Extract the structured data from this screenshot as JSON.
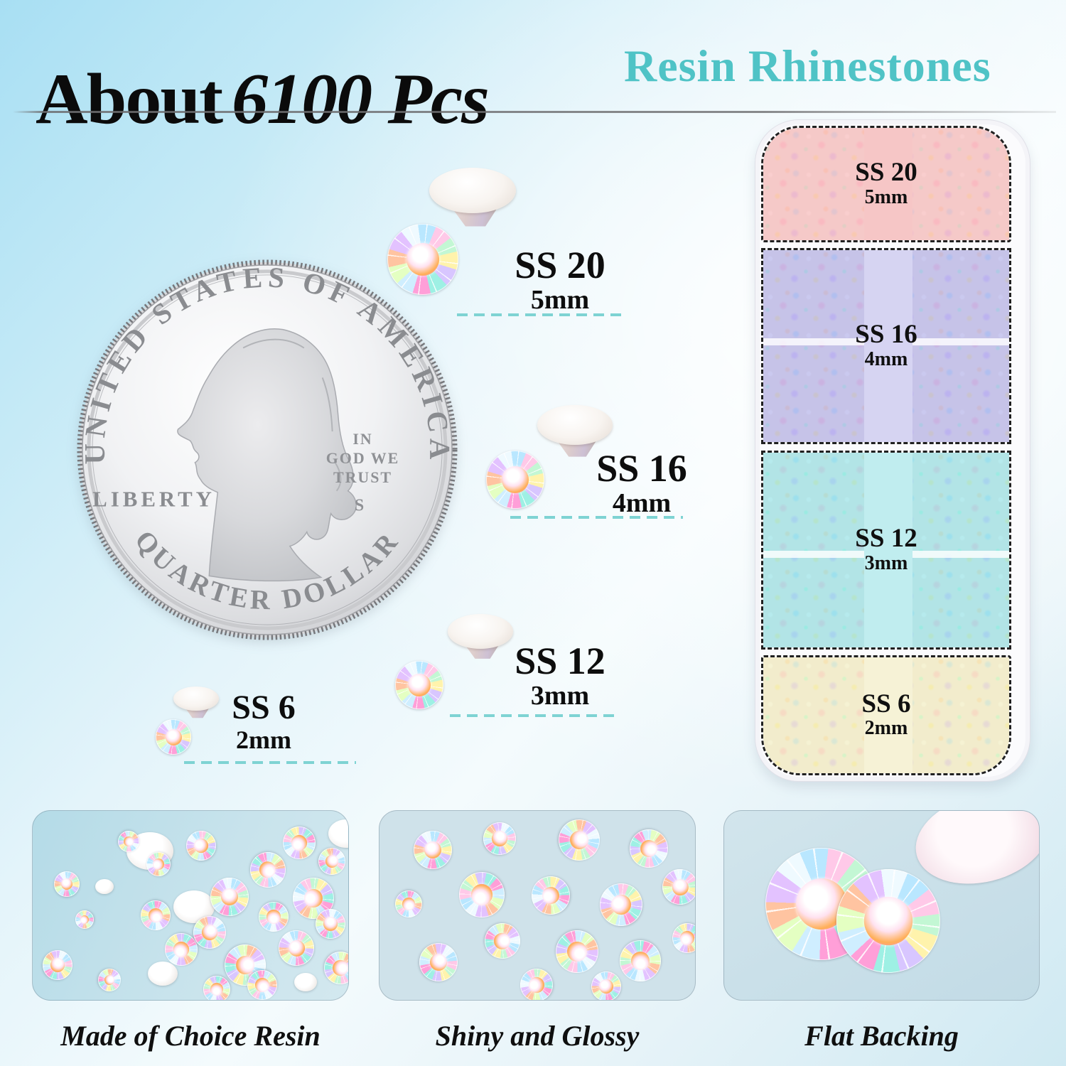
{
  "header": {
    "title_prefix": "About",
    "title_number": "6100 Pcs",
    "subtitle": "Resin Rhinestones",
    "title_color": "#0b0b0b",
    "subtitle_color": "#4fc3c6"
  },
  "coin": {
    "top_text": "UNITED STATES OF AMERICA",
    "left_text": "LIBERTY",
    "motto_lines": [
      "IN",
      "GOD WE",
      "TRUST"
    ],
    "mint_mark": "S",
    "bottom_text": "QUARTER DOLLAR"
  },
  "sizes": [
    {
      "name": "SS 20",
      "mm": "5mm"
    },
    {
      "name": "SS 16",
      "mm": "4mm"
    },
    {
      "name": "SS 12",
      "mm": "3mm"
    },
    {
      "name": "SS 6",
      "mm": "2mm"
    }
  ],
  "box": {
    "sections": [
      {
        "name": "SS 20",
        "mm": "5mm",
        "tint": "#f4a6a6",
        "band": "#f6c6c6"
      },
      {
        "name": "SS 16",
        "mm": "4mm",
        "tint": "#9694e0",
        "band": "#d6d4f2"
      },
      {
        "name": "SS 12",
        "mm": "3mm",
        "tint": "#6ed6dc",
        "band": "#c0edef"
      },
      {
        "name": "SS 6",
        "mm": "2mm",
        "tint": "#ebe4a0",
        "band": "#f6f2d6"
      }
    ]
  },
  "features": [
    {
      "caption": "Made of Choice Resin"
    },
    {
      "caption": "Shiny and Glossy"
    },
    {
      "caption": "Flat Backing"
    }
  ],
  "accent": {
    "dash_color": "#7ed3d3",
    "underline_color": "#6e6e70"
  }
}
